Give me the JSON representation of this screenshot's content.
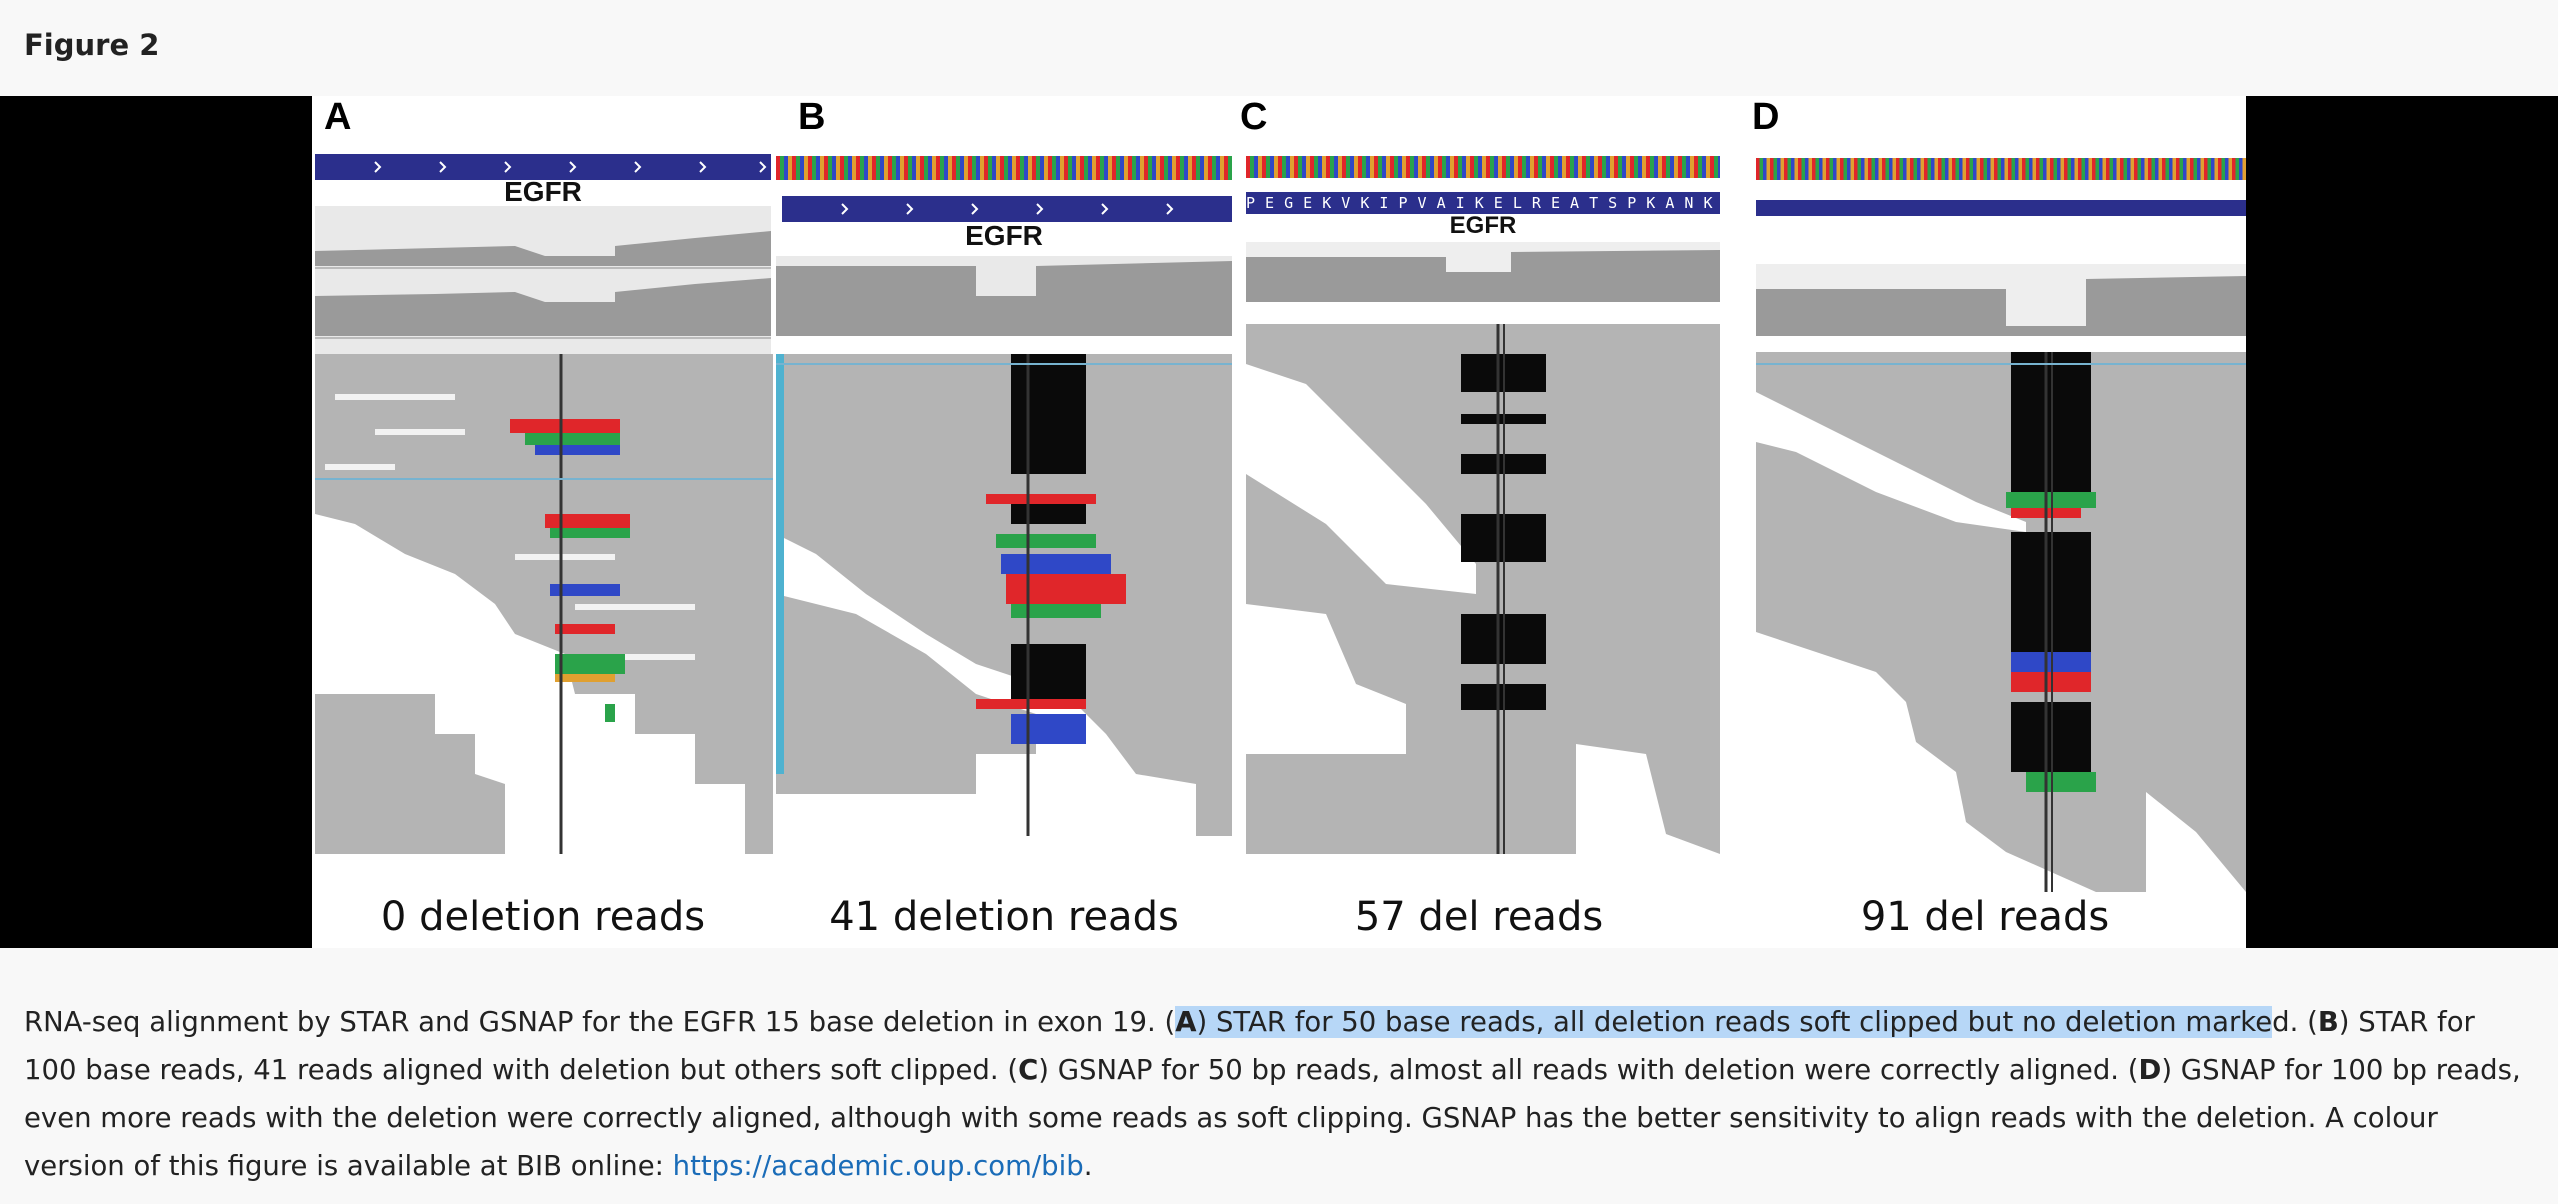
{
  "figure": {
    "title": "Figure 2",
    "panels": [
      {
        "letter": "A",
        "gene": "EGFR",
        "caption": "0 deletion reads"
      },
      {
        "letter": "B",
        "gene": "EGFR",
        "caption": "41 deletion reads"
      },
      {
        "letter": "C",
        "gene": "EGFR",
        "caption": "57 del reads",
        "sequence": "P E G E K V K I P V A I K E L R E A T S P K A N K E I L D"
      },
      {
        "letter": "D",
        "caption": "91 del reads"
      }
    ]
  },
  "caption": {
    "intro": "RNA-seq alignment by STAR and GSNAP for the EGFR 15 base deletion in exon 19. (",
    "a_letter": "A",
    "a_text": ") STAR for 50 base reads, all deletion reads soft clipped but no deletion marke",
    "a_tail": "d. (",
    "b_letter": "B",
    "b_text": ") STAR for 100 base reads, 41 reads aligned with deletion but others soft clipped. (",
    "c_letter": "C",
    "c_text": ") GSNAP for 50 bp reads, almost all reads with deletion were correctly aligned. (",
    "d_letter": "D",
    "d_text": ") GSNAP for 100 bp reads, even more reads with the deletion were correctly aligned, although with some reads as soft clipping. GSNAP has the better sensitivity to align reads with the deletion. A colour version of this figure is available at BIB online: ",
    "link": "https://academic.oup.com/bib",
    "end": "."
  },
  "colors": {
    "gene_bar": "#2b2f8c",
    "read_grey": "#b4b4b4",
    "coverage_grey": "#9a9a9a",
    "deletion_black": "#0a0a0a",
    "base_red": "#e0262a",
    "base_green": "#2aa34a",
    "base_blue": "#2f48c7",
    "base_orange": "#e0a030",
    "highlight": "#b7d7f7",
    "link": "#1a6cb8"
  }
}
